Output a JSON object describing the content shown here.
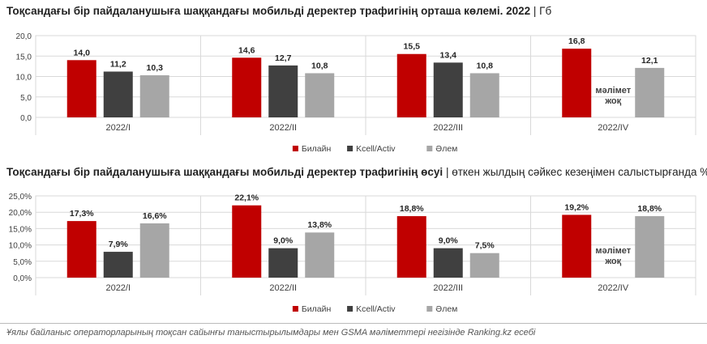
{
  "chart_data": [
    {
      "type": "bar",
      "title": "Тоқсандағы бір пайдаланушыға шаққандағы мобильді деректер трафигінің орташа көлемі. 2022",
      "unit": "Гб",
      "categories": [
        "2022/I",
        "2022/II",
        "2022/III",
        "2022/IV"
      ],
      "series": [
        {
          "name": "Билайн",
          "color": "#c00000",
          "values": [
            14.0,
            14.6,
            15.5,
            16.8
          ],
          "labels": [
            "14,0",
            "14,6",
            "15,5",
            "16,8"
          ]
        },
        {
          "name": "Kcell/Activ",
          "color": "#404040",
          "values": [
            11.2,
            12.7,
            13.4,
            null
          ],
          "labels": [
            "11,2",
            "12,7",
            "13,4",
            ""
          ]
        },
        {
          "name": "Әлем",
          "color": "#a6a6a6",
          "values": [
            10.3,
            10.8,
            10.8,
            12.1
          ],
          "labels": [
            "10,3",
            "10,8",
            "10,8",
            "12,1"
          ]
        }
      ],
      "ylim": [
        0,
        20
      ],
      "yticks": [
        "0,0",
        "5,0",
        "10,0",
        "15,0",
        "20,0"
      ],
      "grid": true,
      "legend": "bottom",
      "annotation": [
        "мәлімет",
        "жоқ"
      ]
    },
    {
      "type": "bar",
      "title": "Тоқсандағы бір пайдаланушыға шаққандағы мобильді деректер трафигінің өсуі",
      "unit": "өткен жылдың сәйкес кезеңімен салыстырғанда %",
      "categories": [
        "2022/I",
        "2022/II",
        "2022/III",
        "2022/IV"
      ],
      "series": [
        {
          "name": "Билайн",
          "color": "#c00000",
          "values": [
            17.3,
            22.1,
            18.8,
            19.2
          ],
          "labels": [
            "17,3%",
            "22,1%",
            "18,8%",
            "19,2%"
          ]
        },
        {
          "name": "Kcell/Activ",
          "color": "#404040",
          "values": [
            7.9,
            9.0,
            9.0,
            null
          ],
          "labels": [
            "7,9%",
            "9,0%",
            "9,0%",
            ""
          ]
        },
        {
          "name": "Әлем",
          "color": "#a6a6a6",
          "values": [
            16.6,
            13.8,
            7.5,
            18.8
          ],
          "labels": [
            "16,6%",
            "13,8%",
            "7,5%",
            "18,8%"
          ]
        }
      ],
      "ylim": [
        0,
        25
      ],
      "yticks": [
        "0,0%",
        "5,0%",
        "10,0%",
        "15,0%",
        "20,0%",
        "25,0%"
      ],
      "grid": true,
      "legend": "bottom",
      "annotation": [
        "мәлімет",
        "жоқ"
      ]
    }
  ],
  "footer": "Ұялы байланыс операторларының тоқсан сайынғы таныстырылымдары мен GSMA мәліметтері негізінде Ranking.kz есебі"
}
